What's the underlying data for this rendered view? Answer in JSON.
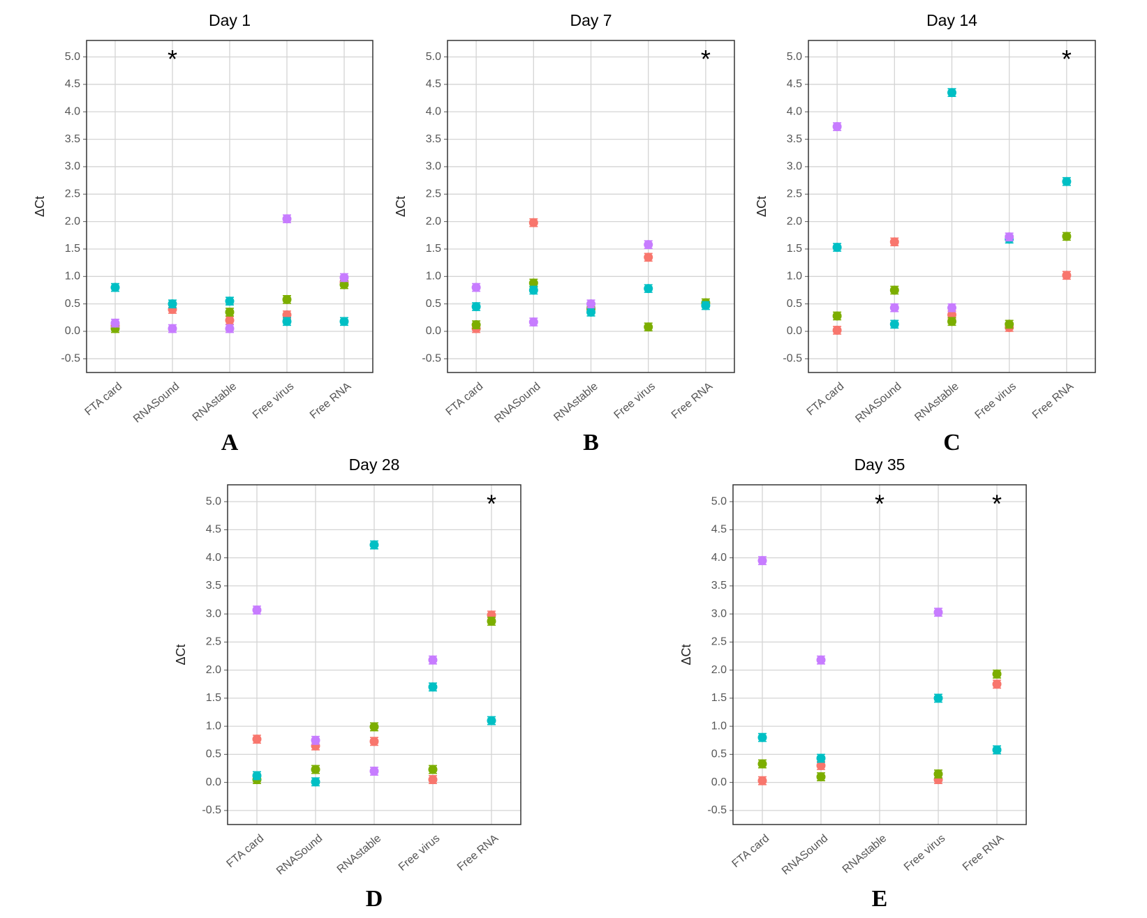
{
  "chart_data": [
    {
      "type": "scatter",
      "title": "Day 1",
      "panel_label": "A",
      "y_label": "ΔCt",
      "categories": [
        "FTA card",
        "RNASound",
        "RNAstable",
        "Free virus",
        "Free RNA"
      ],
      "series": [
        {
          "color": "#F8766D",
          "values": [
            0.1,
            0.4,
            0.2,
            0.3,
            0.9
          ]
        },
        {
          "color": "#7CAE00",
          "values": [
            0.05,
            null,
            0.35,
            0.58,
            0.85
          ]
        },
        {
          "color": "#00BFC4",
          "values": [
            0.8,
            0.5,
            0.55,
            0.18,
            0.18
          ]
        },
        {
          "color": "#C77CFF",
          "values": [
            0.15,
            0.05,
            0.05,
            2.05,
            0.98
          ]
        }
      ],
      "error": 0.07,
      "annotations": [
        {
          "text": "*",
          "x": "RNASound"
        }
      ],
      "ylim": [
        -0.75,
        5.3
      ],
      "yticks": [
        -0.5,
        {
          "value": 0,
          "label": "0.0"
        },
        0.5,
        {
          "value": 1,
          "label": "1.0"
        },
        1.5,
        {
          "value": 2,
          "label": "2.0"
        },
        2.5,
        {
          "value": 3,
          "label": "3.0"
        },
        3.5,
        {
          "value": 4,
          "label": "4.0"
        },
        4.5,
        {
          "value": 5,
          "label": "5.0"
        }
      ],
      "grid": true
    },
    {
      "type": "scatter",
      "title": "Day 7",
      "panel_label": "B",
      "y_label": "ΔCt",
      "categories": [
        "FTA card",
        "RNASound",
        "RNAstable",
        "Free virus",
        "Free RNA"
      ],
      "series": [
        {
          "color": "#F8766D",
          "values": [
            0.05,
            1.98,
            0.4,
            1.35,
            null
          ]
        },
        {
          "color": "#7CAE00",
          "values": [
            0.12,
            0.88,
            0.42,
            0.08,
            0.52
          ]
        },
        {
          "color": "#00BFC4",
          "values": [
            0.45,
            0.75,
            0.35,
            0.78,
            0.47
          ]
        },
        {
          "color": "#C77CFF",
          "values": [
            0.8,
            0.17,
            0.5,
            1.58,
            null
          ]
        }
      ],
      "error": 0.07,
      "annotations": [
        {
          "text": "*",
          "x": "Free RNA"
        }
      ],
      "ylim": [
        -0.75,
        5.3
      ],
      "yticks": [
        -0.5,
        {
          "value": 0,
          "label": "0.0"
        },
        0.5,
        {
          "value": 1,
          "label": "1.0"
        },
        1.5,
        {
          "value": 2,
          "label": "2.0"
        },
        2.5,
        {
          "value": 3,
          "label": "3.0"
        },
        3.5,
        {
          "value": 4,
          "label": "4.0"
        },
        4.5,
        {
          "value": 5,
          "label": "5.0"
        }
      ],
      "grid": true
    },
    {
      "type": "scatter",
      "title": "Day 14",
      "panel_label": "C",
      "y_label": "ΔCt",
      "categories": [
        "FTA card",
        "RNASound",
        "RNAstable",
        "Free virus",
        "Free RNA"
      ],
      "series": [
        {
          "color": "#F8766D",
          "values": [
            0.02,
            1.63,
            0.3,
            0.07,
            1.02
          ]
        },
        {
          "color": "#7CAE00",
          "values": [
            0.28,
            0.75,
            0.18,
            0.13,
            1.73
          ]
        },
        {
          "color": "#00BFC4",
          "values": [
            1.53,
            0.13,
            4.35,
            1.68,
            2.73
          ]
        },
        {
          "color": "#C77CFF",
          "values": [
            3.73,
            0.43,
            0.43,
            1.72,
            null
          ]
        }
      ],
      "error": 0.07,
      "annotations": [
        {
          "text": "*",
          "x": "Free RNA"
        }
      ],
      "ylim": [
        -0.75,
        5.3
      ],
      "yticks": [
        -0.5,
        {
          "value": 0,
          "label": "0.0"
        },
        0.5,
        {
          "value": 1,
          "label": "1.0"
        },
        1.5,
        {
          "value": 2,
          "label": "2.0"
        },
        2.5,
        {
          "value": 3,
          "label": "3.0"
        },
        3.5,
        {
          "value": 4,
          "label": "4.0"
        },
        4.5,
        {
          "value": 5,
          "label": "5.0"
        }
      ],
      "grid": true
    },
    {
      "type": "scatter",
      "title": "Day 28",
      "panel_label": "D",
      "y_label": "ΔCt",
      "categories": [
        "FTA card",
        "RNASound",
        "RNAstable",
        "Free virus",
        "Free RNA"
      ],
      "series": [
        {
          "color": "#F8766D",
          "values": [
            0.77,
            0.65,
            0.73,
            0.05,
            2.98
          ]
        },
        {
          "color": "#7CAE00",
          "values": [
            0.05,
            0.23,
            0.99,
            0.23,
            2.87
          ]
        },
        {
          "color": "#00BFC4",
          "values": [
            0.12,
            0.01,
            4.23,
            1.7,
            1.1
          ]
        },
        {
          "color": "#C77CFF",
          "values": [
            3.07,
            0.75,
            0.2,
            2.18,
            null
          ]
        }
      ],
      "error": 0.07,
      "annotations": [
        {
          "text": "*",
          "x": "Free RNA"
        }
      ],
      "ylim": [
        -0.75,
        5.3
      ],
      "yticks": [
        -0.5,
        {
          "value": 0,
          "label": "0.0"
        },
        0.5,
        {
          "value": 1,
          "label": "1.0"
        },
        1.5,
        {
          "value": 2,
          "label": "2.0"
        },
        2.5,
        {
          "value": 3,
          "label": "3.0"
        },
        3.5,
        {
          "value": 4,
          "label": "4.0"
        },
        4.5,
        {
          "value": 5,
          "label": "5.0"
        }
      ],
      "grid": true
    },
    {
      "type": "scatter",
      "title": "Day 35",
      "panel_label": "E",
      "y_label": "ΔCt",
      "categories": [
        "FTA card",
        "RNASound",
        "RNAstable",
        "Free virus",
        "Free RNA"
      ],
      "series": [
        {
          "color": "#F8766D",
          "values": [
            0.03,
            0.3,
            null,
            0.05,
            1.75
          ]
        },
        {
          "color": "#7CAE00",
          "values": [
            0.33,
            0.1,
            null,
            0.15,
            1.93
          ]
        },
        {
          "color": "#00BFC4",
          "values": [
            0.8,
            0.43,
            null,
            1.5,
            0.58
          ]
        },
        {
          "color": "#C77CFF",
          "values": [
            3.95,
            2.18,
            null,
            3.03,
            null
          ]
        }
      ],
      "error": 0.07,
      "annotations": [
        {
          "text": "*",
          "x": "RNAstable"
        },
        {
          "text": "*",
          "x": "Free RNA"
        }
      ],
      "ylim": [
        -0.75,
        5.3
      ],
      "yticks": [
        -0.5,
        {
          "value": 0,
          "label": "0.0"
        },
        0.5,
        {
          "value": 1,
          "label": "1.0"
        },
        1.5,
        {
          "value": 2,
          "label": "2.0"
        },
        2.5,
        {
          "value": 3,
          "label": "3.0"
        },
        3.5,
        {
          "value": 4,
          "label": "4.0"
        },
        4.5,
        {
          "value": 5,
          "label": "5.0"
        }
      ],
      "grid": true
    }
  ]
}
